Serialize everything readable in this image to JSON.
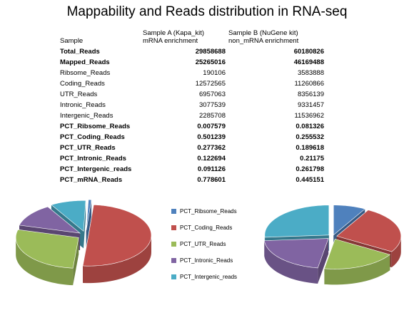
{
  "title": "Mappability and Reads distribution in RNA-seq",
  "table": {
    "col0": "Sample",
    "colA_line1": "Sample A (Kapa_kit)",
    "colA_line2": "mRNA enrichment",
    "colB_line1": "Sample B (NuGene kit)",
    "colB_line2": "non_mRNA enrichment",
    "rows": [
      {
        "label": "Total_Reads",
        "a": "29858688",
        "b": "60180826",
        "bold": true
      },
      {
        "label": "Mapped_Reads",
        "a": "25265016",
        "b": "46169488",
        "bold": true
      },
      {
        "label": "Ribsome_Reads",
        "a": "190106",
        "b": "3583888",
        "bold": false
      },
      {
        "label": "Coding_Reads",
        "a": "12572565",
        "b": "11260866",
        "bold": false
      },
      {
        "label": "UTR_Reads",
        "a": "6957063",
        "b": "8356139",
        "bold": false
      },
      {
        "label": "Intronic_Reads",
        "a": "3077539",
        "b": "9331457",
        "bold": false
      },
      {
        "label": "Intergenic_Reads",
        "a": "2285708",
        "b": "11536962",
        "bold": false
      },
      {
        "label": "PCT_Ribsome_Reads",
        "a": "0.007579",
        "b": "0.081326",
        "bold": true
      },
      {
        "label": "PCT_Coding_Reads",
        "a": "0.501239",
        "b": "0.255532",
        "bold": true
      },
      {
        "label": "PCT_UTR_Reads",
        "a": "0.277362",
        "b": "0.189618",
        "bold": true
      },
      {
        "label": "PCT_Intronic_Reads",
        "a": "0.122694",
        "b": "0.21175",
        "bold": true
      },
      {
        "label": "PCT_Intergenic_reads",
        "a": "0.091126",
        "b": "0.261798",
        "bold": true
      },
      {
        "label": "PCT_mRNA_Reads",
        "a": "0.778601",
        "b": "0.445151",
        "bold": true
      }
    ]
  },
  "chart_data": [
    {
      "type": "pie",
      "categories": [
        "PCT_Ribsome_Reads",
        "PCT_Coding_Reads",
        "PCT_UTR_Reads",
        "PCT_Intronic_Reads",
        "PCT_Intergenic_reads"
      ],
      "values": [
        0.007579,
        0.501239,
        0.277362,
        0.122694,
        0.091126
      ],
      "colors": [
        "#4f81bd",
        "#c0504d",
        "#9bbb59",
        "#8064a2",
        "#4bacc6"
      ],
      "style": "3d-exploded",
      "legend": "right"
    },
    {
      "type": "pie",
      "categories": [
        "PCT_Ribsome_Reads",
        "PCT_Coding_Reads",
        "PCT_UTR_Reads",
        "PCT_Intronic_Reads",
        "PCT_Intergenic_reads"
      ],
      "values": [
        0.081326,
        0.255532,
        0.189618,
        0.21175,
        0.261798
      ],
      "colors": [
        "#4f81bd",
        "#c0504d",
        "#9bbb59",
        "#8064a2",
        "#4bacc6"
      ],
      "style": "3d-exploded",
      "legend": "left"
    }
  ]
}
